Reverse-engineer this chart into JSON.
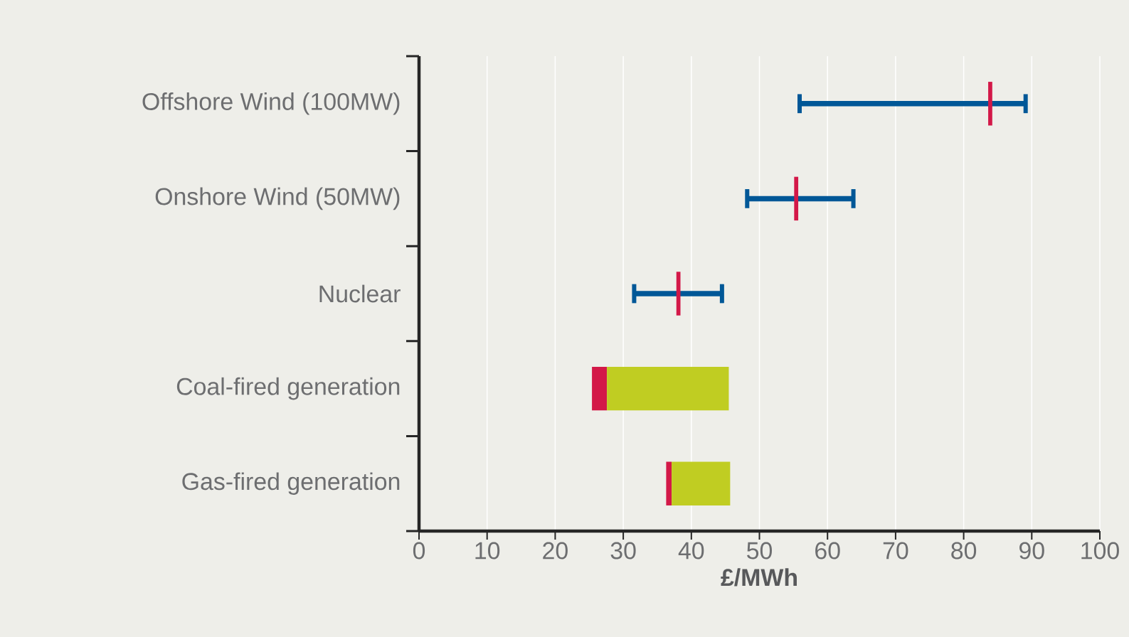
{
  "chart_data": {
    "type": "bar",
    "orientation": "horizontal",
    "xlabel": "£/MWh",
    "categories": [
      "Offshore Wind (100MW)",
      "Onshore Wind (50MW)",
      "Nuclear",
      "Coal-fired generation",
      "Gas-fired generation"
    ],
    "series": [
      {
        "type": "bar",
        "color": "#005797",
        "base": [
          55.9,
          48.2,
          31.6,
          null,
          null
        ],
        "values": [
          33.2,
          15.6,
          12.9,
          null,
          null
        ]
      },
      {
        "type": "bar",
        "color": "#d31848",
        "base": [
          83.6,
          55.1,
          37.8,
          25.4,
          36.3
        ],
        "values": [
          0.6,
          0.6,
          0.6,
          2.2,
          0.8
        ]
      },
      {
        "type": "bar",
        "color": "#c0cd22",
        "base": [
          null,
          null,
          null,
          27.6,
          37.1
        ],
        "values": [
          null,
          null,
          null,
          17.9,
          8.6
        ]
      }
    ],
    "xlim": [
      0,
      100
    ],
    "xticks": [
      0,
      10,
      20,
      30,
      40,
      50,
      60,
      70,
      80,
      90,
      100
    ],
    "grid": "x"
  }
}
